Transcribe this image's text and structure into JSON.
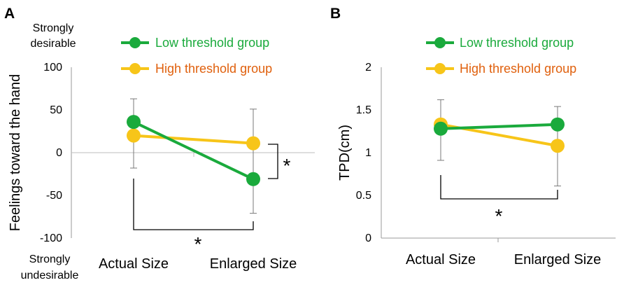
{
  "chart_data": [
    {
      "panel_label": "A",
      "type": "line",
      "categories": [
        "Actual Size",
        "Enlarged Size"
      ],
      "ylabel": "Feelings toward the hand",
      "ylim": [
        -100,
        100
      ],
      "yticks": [
        {
          "value": 100,
          "label": "100"
        },
        {
          "value": 50,
          "label": "50"
        },
        {
          "value": 0,
          "label": "0"
        },
        {
          "value": -50,
          "label": "-50"
        },
        {
          "value": -100,
          "label": "-100"
        }
      ],
      "top_annotation": [
        "Strongly",
        "desirable"
      ],
      "bottom_annotation": [
        "Strongly",
        "undesirable"
      ],
      "series": [
        {
          "name": "Low threshold group",
          "color": "#1aaa3c",
          "label_color": "#1aaa3c",
          "values": [
            36,
            -31
          ],
          "error_upper": [
            63,
            51
          ],
          "error_lower": [
            -18,
            -71
          ]
        },
        {
          "name": "High threshold group",
          "color": "#f7c519",
          "label_color": "#e0600d",
          "values": [
            20,
            11
          ],
          "error_upper": [
            null,
            null
          ],
          "error_lower": [
            null,
            null
          ]
        }
      ],
      "significance": [
        {
          "type": "between-groups",
          "category": "Enlarged Size",
          "label": "*"
        },
        {
          "type": "between-conditions",
          "series": "Low threshold group",
          "label": "*"
        }
      ]
    },
    {
      "panel_label": "B",
      "type": "line",
      "categories": [
        "Actual Size",
        "Enlarged Size"
      ],
      "ylabel": "TPD(cm)",
      "ylim": [
        0,
        2
      ],
      "yticks": [
        {
          "value": 2,
          "label": "2"
        },
        {
          "value": 1.5,
          "label": "1.5"
        },
        {
          "value": 1,
          "label": "1"
        },
        {
          "value": 0.5,
          "label": "0.5"
        },
        {
          "value": 0,
          "label": "0"
        }
      ],
      "series": [
        {
          "name": "Low threshold group",
          "color": "#1aaa3c",
          "label_color": "#1aaa3c",
          "values": [
            1.28,
            1.33
          ],
          "error_upper": [
            1.62,
            1.54
          ],
          "error_lower": [
            0.91,
            0.61
          ]
        },
        {
          "name": "High threshold group",
          "color": "#f7c519",
          "label_color": "#e0600d",
          "values": [
            1.33,
            1.08
          ],
          "error_upper": [
            null,
            null
          ],
          "error_lower": [
            null,
            null
          ]
        }
      ],
      "significance": [
        {
          "type": "between-conditions",
          "series": "High threshold group",
          "label": "*"
        }
      ]
    }
  ]
}
